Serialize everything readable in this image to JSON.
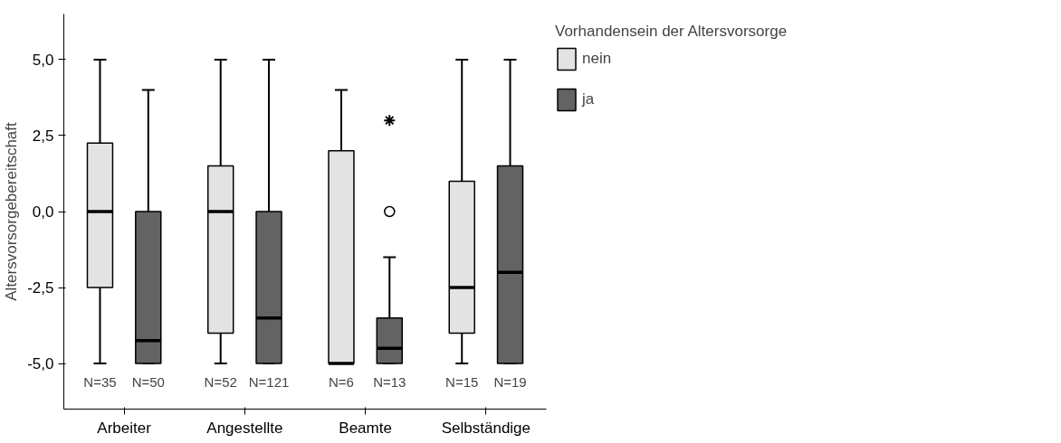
{
  "chart_data": {
    "type": "box",
    "ylabel": "Altersvorsorgebereitschaft",
    "legend_title": "Vorhandensein der Altersvorsorge",
    "categories": [
      "Arbeiter",
      "Angestellte",
      "Beamte",
      "Selbständige"
    ],
    "series": [
      {
        "name": "nein",
        "color": "#e3e3e3",
        "boxes": [
          {
            "low": -5,
            "q1": -2.5,
            "median": 0,
            "q3": 2.25,
            "high": 5
          },
          {
            "low": -5,
            "q1": -4,
            "median": 0,
            "q3": 1.5,
            "high": 5
          },
          {
            "low": -5,
            "q1": -5,
            "median": -5,
            "q3": 2,
            "high": 4
          },
          {
            "low": -5,
            "q1": -4,
            "median": -2.5,
            "q3": 1,
            "high": 5
          }
        ]
      },
      {
        "name": "ja",
        "color": "#636363",
        "boxes": [
          {
            "low": -5,
            "q1": -5,
            "median": -4.25,
            "q3": 0,
            "high": 4
          },
          {
            "low": -5,
            "q1": -5,
            "median": -3.5,
            "q3": 0,
            "high": 5
          },
          {
            "low": -5,
            "q1": -5,
            "median": -4.5,
            "q3": -3.5,
            "high": -1.5,
            "outliers": [
              0,
              3
            ]
          },
          {
            "low": -5,
            "q1": -5,
            "median": -2,
            "q3": 1.5,
            "high": 5
          }
        ]
      }
    ],
    "ylim": [
      -6.5,
      6.5
    ],
    "yticks": [
      {
        "value": -5,
        "label": "-5,0"
      },
      {
        "value": -2.5,
        "label": "-2,5"
      },
      {
        "value": 0,
        "label": "0,0"
      },
      {
        "value": 2.5,
        "label": "2,5"
      },
      {
        "value": 5,
        "label": "5,0"
      }
    ],
    "annotations": [
      "N=35",
      "N=50",
      "N=52",
      "N=121",
      "N=6",
      "N=13",
      "N=15",
      "N=19"
    ],
    "grid": false,
    "legend": "top right"
  }
}
